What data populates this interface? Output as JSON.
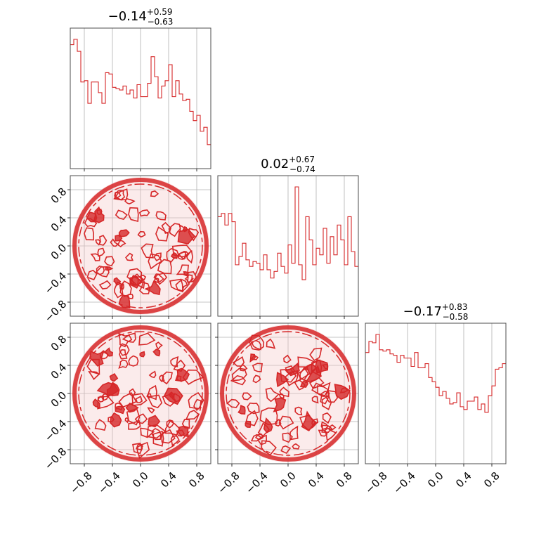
{
  "chart_data": {
    "type": "corner",
    "colors": {
      "line": "#d62728",
      "fill": "#f4c6c7",
      "grid": "#b0b0b0",
      "frame": "#4d4d4d"
    },
    "grid": true,
    "range": [
      -1.0,
      1.0
    ],
    "ticks": {
      "values": [
        -0.8,
        -0.4,
        0.0,
        0.4,
        0.8
      ],
      "labels": [
        "−0.8",
        "−0.4",
        "0.0",
        "0.4",
        "0.8"
      ]
    },
    "parameters": [
      {
        "title_value": "−0.14",
        "title_upper": "+0.59",
        "title_lower": "−0.63"
      },
      {
        "title_value": "0.02",
        "title_upper": "+0.67",
        "title_lower": "−0.74"
      },
      {
        "title_value": "−0.17",
        "title_upper": "+0.83",
        "title_lower": "−0.58"
      }
    ],
    "histograms": [
      {
        "param": 0,
        "bins": 40,
        "counts": [
          0.93,
          0.97,
          0.88,
          0.65,
          0.66,
          0.49,
          0.65,
          0.65,
          0.57,
          0.49,
          0.72,
          0.71,
          0.61,
          0.6,
          0.59,
          0.62,
          0.56,
          0.59,
          0.53,
          0.63,
          0.54,
          0.54,
          0.64,
          0.84,
          0.69,
          0.53,
          0.62,
          0.66,
          0.78,
          0.54,
          0.66,
          0.56,
          0.51,
          0.52,
          0.43,
          0.36,
          0.4,
          0.28,
          0.31,
          0.18
        ]
      },
      {
        "param": 1,
        "bins": 40,
        "counts": [
          0.6,
          0.62,
          0.55,
          0.62,
          0.57,
          0.31,
          0.36,
          0.44,
          0.34,
          0.3,
          0.33,
          0.32,
          0.28,
          0.37,
          0.28,
          0.23,
          0.27,
          0.38,
          0.3,
          0.26,
          0.43,
          0.32,
          0.78,
          0.31,
          0.22,
          0.6,
          0.46,
          0.31,
          0.41,
          0.37,
          0.53,
          0.32,
          0.48,
          0.37,
          0.55,
          0.46,
          0.31,
          0.6,
          0.39,
          0.3
        ]
      },
      {
        "param": 2,
        "bins": 40,
        "counts": [
          0.8,
          0.88,
          0.87,
          0.93,
          0.82,
          0.81,
          0.82,
          0.79,
          0.78,
          0.73,
          0.78,
          0.76,
          0.76,
          0.7,
          0.8,
          0.69,
          0.69,
          0.72,
          0.62,
          0.59,
          0.55,
          0.49,
          0.52,
          0.47,
          0.43,
          0.44,
          0.51,
          0.41,
          0.39,
          0.45,
          0.45,
          0.48,
          0.39,
          0.43,
          0.37,
          0.49,
          0.56,
          0.68,
          0.69,
          0.72
        ]
      }
    ],
    "contour_panels": [
      {
        "x_param": 0,
        "y_param": 1,
        "bins": 40
      },
      {
        "x_param": 0,
        "y_param": 2,
        "bins": 40
      },
      {
        "x_param": 1,
        "y_param": 2,
        "bins": 40
      }
    ]
  }
}
